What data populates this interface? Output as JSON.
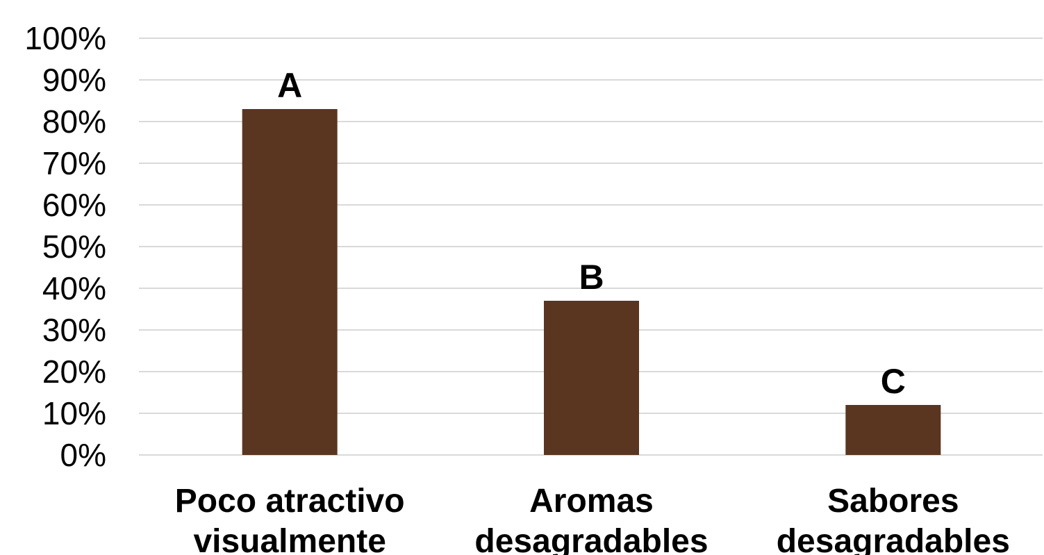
{
  "chart_data": {
    "type": "bar",
    "categories": [
      [
        "Poco atractivo",
        "visualmente"
      ],
      [
        "Aromas",
        "desagradables"
      ],
      [
        "Sabores",
        "desagradables"
      ]
    ],
    "values": [
      83,
      37,
      12
    ],
    "bar_labels": [
      "A",
      "B",
      "C"
    ],
    "y_ticks": [
      "0%",
      "10%",
      "20%",
      "30%",
      "40%",
      "50%",
      "60%",
      "70%",
      "80%",
      "90%",
      "100%"
    ],
    "ylim": [
      0,
      100
    ],
    "title": "",
    "xlabel": "",
    "ylabel": "",
    "grid": true,
    "legend": "none",
    "colors": {
      "bar": "#5a3520",
      "grid": "#d9d9d9",
      "text": "#000000"
    }
  }
}
